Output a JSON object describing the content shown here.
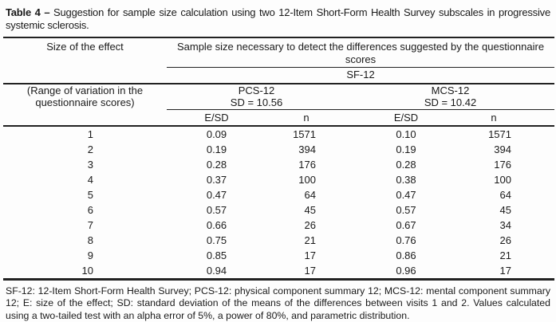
{
  "title": {
    "label": "Table 4 –",
    "text": "Suggestion for sample size calculation using two 12-Item Short-Form Health Survey subscales in progressive systemic sclerosis."
  },
  "table": {
    "col1_header": "Size of the effect",
    "col1_subheader": "(Range of variation in the questionnaire scores)",
    "span_header": "Sample size necessary to detect the differences suggested by the questionnaire scores",
    "survey_label": "SF-12",
    "groups": [
      {
        "name": "PCS-12",
        "sd": "SD = 10.56"
      },
      {
        "name": "MCS-12",
        "sd": "SD = 10.42"
      }
    ],
    "sub_headers": {
      "esd": "E/SD",
      "n": "n"
    },
    "rows": [
      {
        "effect": "1",
        "pcs_esd": "0.09",
        "pcs_n": "1571",
        "mcs_esd": "0.10",
        "mcs_n": "1571"
      },
      {
        "effect": "2",
        "pcs_esd": "0.19",
        "pcs_n": "394",
        "mcs_esd": "0.19",
        "mcs_n": "394"
      },
      {
        "effect": "3",
        "pcs_esd": "0.28",
        "pcs_n": "176",
        "mcs_esd": "0.28",
        "mcs_n": "176"
      },
      {
        "effect": "4",
        "pcs_esd": "0.37",
        "pcs_n": "100",
        "mcs_esd": "0.38",
        "mcs_n": "100"
      },
      {
        "effect": "5",
        "pcs_esd": "0.47",
        "pcs_n": "64",
        "mcs_esd": "0.47",
        "mcs_n": "64"
      },
      {
        "effect": "6",
        "pcs_esd": "0.57",
        "pcs_n": "45",
        "mcs_esd": "0.57",
        "mcs_n": "45"
      },
      {
        "effect": "7",
        "pcs_esd": "0.66",
        "pcs_n": "26",
        "mcs_esd": "0.67",
        "mcs_n": "34"
      },
      {
        "effect": "8",
        "pcs_esd": "0.75",
        "pcs_n": "21",
        "mcs_esd": "0.76",
        "mcs_n": "26"
      },
      {
        "effect": "9",
        "pcs_esd": "0.85",
        "pcs_n": "17",
        "mcs_esd": "0.86",
        "mcs_n": "21"
      },
      {
        "effect": "10",
        "pcs_esd": "0.94",
        "pcs_n": "17",
        "mcs_esd": "0.96",
        "mcs_n": "17"
      }
    ]
  },
  "footnote": "SF-12: 12-Item Short-Form Health Survey; PCS-12: physical component summary 12; MCS-12: mental component summary 12; E: size of the effect; SD: standard deviation of the means of the differences between visits 1 and 2. Values calculated using a two-tailed test with an alpha error of 5%, a power of 80%, and parametric distribution.",
  "colors": {
    "background": "#fdfdfd",
    "text": "#1a1a1a",
    "rule": "#222222"
  }
}
